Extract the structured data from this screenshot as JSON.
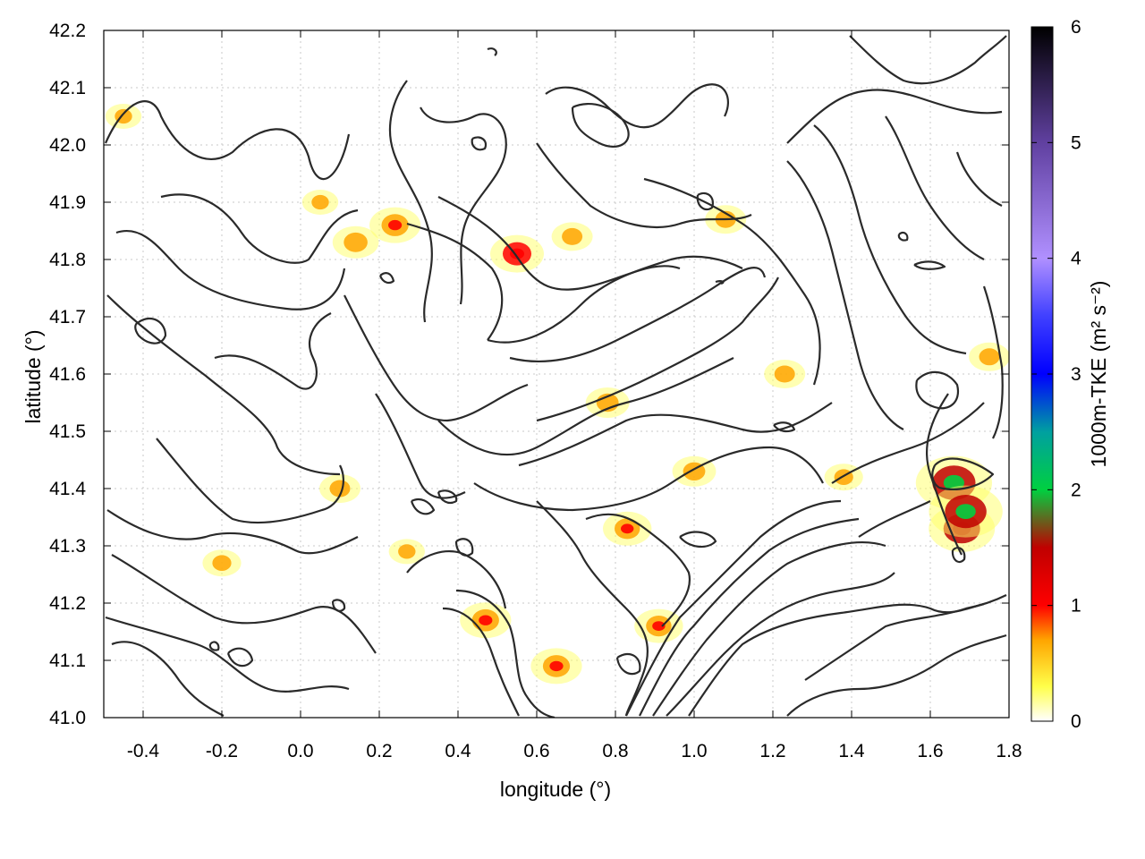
{
  "chart_data": {
    "type": "heatmap",
    "title": "",
    "xlabel": "longitude (°)",
    "ylabel": "latitude (°)",
    "xlim": [
      -0.5,
      1.8
    ],
    "ylim": [
      41.0,
      42.2
    ],
    "x_ticks": [
      -0.4,
      -0.2,
      0.0,
      0.2,
      0.4,
      0.6,
      0.8,
      1.0,
      1.2,
      1.4,
      1.6,
      1.8
    ],
    "x_tick_labels": [
      "-0.4",
      "-0.2",
      "0.0",
      "0.2",
      "0.4",
      "0.6",
      "0.8",
      "1.0",
      "1.2",
      "1.4",
      "1.6",
      "1.8"
    ],
    "y_ticks": [
      41.0,
      41.1,
      41.2,
      41.3,
      41.4,
      41.5,
      41.6,
      41.7,
      41.8,
      41.9,
      42.0,
      42.1,
      42.2
    ],
    "y_tick_labels": [
      "41.0",
      "41.1",
      "41.2",
      "41.3",
      "41.4",
      "41.5",
      "41.6",
      "41.7",
      "41.8",
      "41.9",
      "42.0",
      "42.1",
      "42.2"
    ],
    "grid": true,
    "colorbar": {
      "label": "1000m-TKE (m² s⁻²)",
      "range": [
        0,
        6
      ],
      "ticks": [
        0,
        1,
        2,
        3,
        4,
        5,
        6
      ],
      "tick_labels": [
        "0",
        "1",
        "2",
        "3",
        "4",
        "5",
        "6"
      ],
      "colormap": [
        {
          "v": 0.0,
          "color": "#ffffff"
        },
        {
          "v": 0.3,
          "color": "#ffff4a"
        },
        {
          "v": 0.7,
          "color": "#ffa500"
        },
        {
          "v": 1.0,
          "color": "#ff0000"
        },
        {
          "v": 1.5,
          "color": "#c00000"
        },
        {
          "v": 2.0,
          "color": "#00d040"
        },
        {
          "v": 2.5,
          "color": "#00a0a0"
        },
        {
          "v": 3.0,
          "color": "#0000ff"
        },
        {
          "v": 3.5,
          "color": "#4040ff"
        },
        {
          "v": 4.0,
          "color": "#b090ff"
        },
        {
          "v": 5.0,
          "color": "#6040a0"
        },
        {
          "v": 6.0,
          "color": "#000000"
        }
      ]
    },
    "hotspots": [
      {
        "lon": 1.66,
        "lat": 41.41,
        "value": 1.9
      },
      {
        "lon": 1.68,
        "lat": 41.33,
        "value": 1.5
      },
      {
        "lon": 1.69,
        "lat": 41.36,
        "value": 1.8
      },
      {
        "lon": 0.55,
        "lat": 41.81,
        "value": 1.0
      },
      {
        "lon": 0.24,
        "lat": 41.86,
        "value": 0.9
      },
      {
        "lon": 0.14,
        "lat": 41.83,
        "value": 0.7
      },
      {
        "lon": 0.47,
        "lat": 41.17,
        "value": 0.9
      },
      {
        "lon": 0.65,
        "lat": 41.09,
        "value": 0.9
      },
      {
        "lon": 0.91,
        "lat": 41.16,
        "value": 0.8
      },
      {
        "lon": 0.83,
        "lat": 41.33,
        "value": 0.8
      },
      {
        "lon": 0.78,
        "lat": 41.55,
        "value": 0.6
      },
      {
        "lon": 1.0,
        "lat": 41.43,
        "value": 0.6
      },
      {
        "lon": 1.23,
        "lat": 41.6,
        "value": 0.5
      },
      {
        "lon": 1.75,
        "lat": 41.63,
        "value": 0.5
      },
      {
        "lon": 0.69,
        "lat": 41.84,
        "value": 0.5
      },
      {
        "lon": 1.08,
        "lat": 41.87,
        "value": 0.5
      },
      {
        "lon": 0.1,
        "lat": 41.4,
        "value": 0.5
      },
      {
        "lon": -0.2,
        "lat": 41.27,
        "value": 0.4
      },
      {
        "lon": 1.38,
        "lat": 41.42,
        "value": 0.4
      },
      {
        "lon": 0.05,
        "lat": 41.9,
        "value": 0.3
      },
      {
        "lon": -0.45,
        "lat": 42.05,
        "value": 0.3
      },
      {
        "lon": 0.27,
        "lat": 41.29,
        "value": 0.3
      }
    ]
  }
}
